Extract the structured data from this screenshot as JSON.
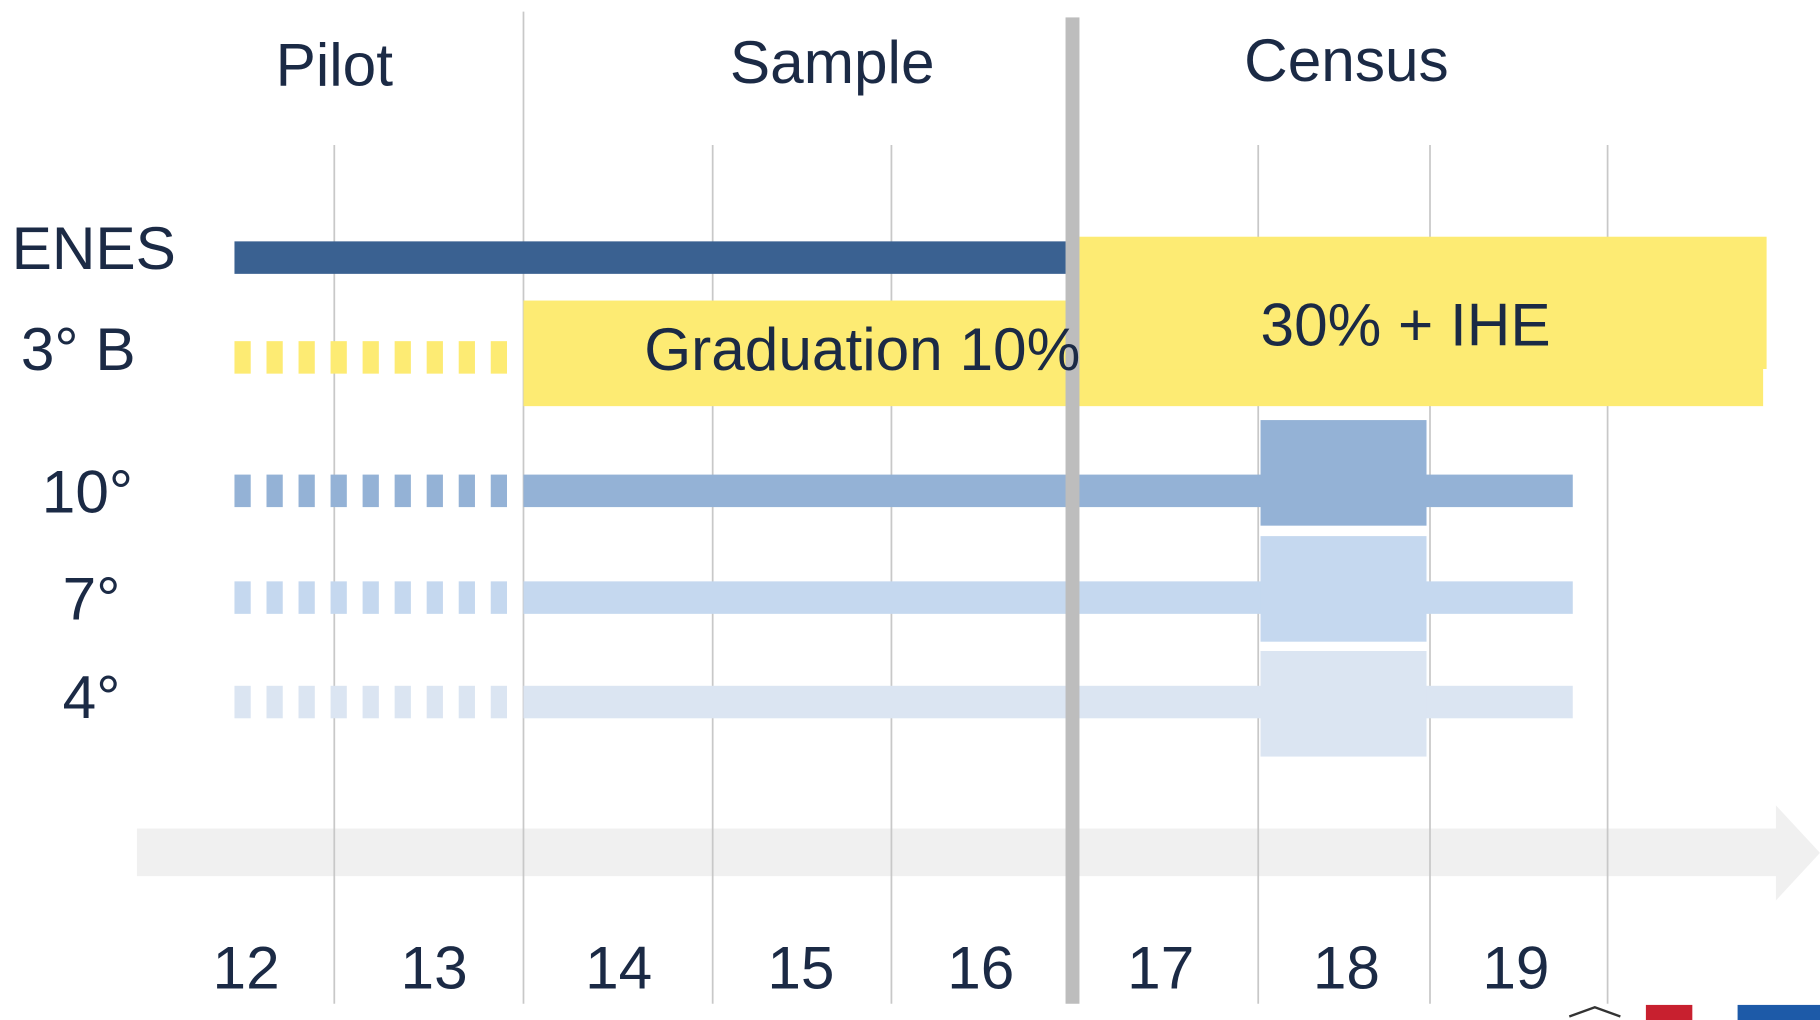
{
  "phases": [
    "Pilot",
    "Sample",
    "Census"
  ],
  "rows": [
    "ENES",
    "3° B",
    "10°",
    "7°",
    "4°"
  ],
  "bar_labels": [
    "Graduation  10%",
    "30% + IHE"
  ],
  "years": [
    "12",
    "13",
    "14",
    "15",
    "16",
    "17",
    "18",
    "19"
  ]
}
